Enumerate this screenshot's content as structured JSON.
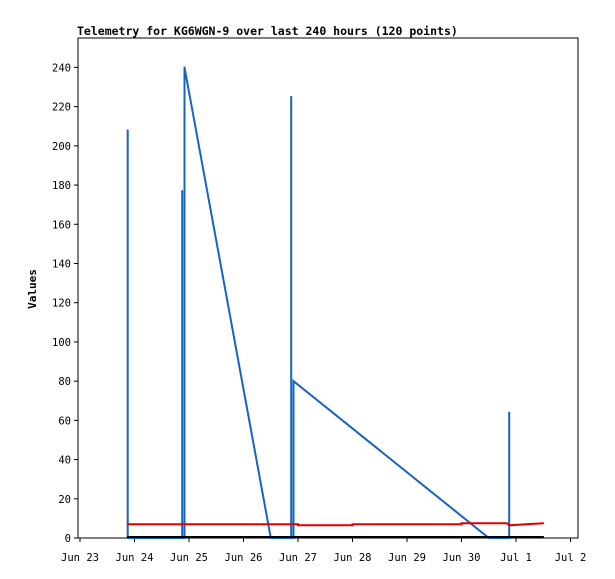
{
  "chart_data": {
    "type": "line",
    "title": "Telemetry for KG6WGN-9 over last 240 hours (120 points)",
    "ylabel": "Values",
    "xlabel": "",
    "x_ticks": [
      "Jun 23",
      "Jun 24",
      "Jun 25",
      "Jun 26",
      "Jun 27",
      "Jun 28",
      "Jun 29",
      "Jun 30",
      "Jul 1",
      "Jul 2"
    ],
    "ylim": [
      0,
      255
    ],
    "y_ticks": [
      0,
      20,
      40,
      60,
      80,
      100,
      120,
      140,
      160,
      180,
      200,
      220,
      240
    ],
    "series": [
      {
        "color": "#1565c0",
        "points": [
          {
            "x": "Jun 23 21:00",
            "y": 0
          },
          {
            "x": "Jun 23 21:00",
            "y": 208
          },
          {
            "x": "Jun 23 21:00",
            "y": 0
          },
          {
            "x": "Jun 24 21:00",
            "y": 0
          },
          {
            "x": "Jun 24 21:00",
            "y": 177
          },
          {
            "x": "Jun 24 21:00",
            "y": 0
          },
          {
            "x": "Jun 24 22:00",
            "y": 0
          },
          {
            "x": "Jun 24 22:00",
            "y": 240
          },
          {
            "x": "Jun 26 12:00",
            "y": 0
          },
          {
            "x": "Jun 26 21:00",
            "y": 0
          },
          {
            "x": "Jun 26 21:00",
            "y": 225
          },
          {
            "x": "Jun 26 21:00",
            "y": 0
          },
          {
            "x": "Jun 26 22:00",
            "y": 0
          },
          {
            "x": "Jun 26 22:00",
            "y": 80
          },
          {
            "x": "Jun 30 12:00",
            "y": 0
          },
          {
            "x": "Jun 30 21:00",
            "y": 0
          },
          {
            "x": "Jun 30 21:00",
            "y": 64
          },
          {
            "x": "Jun 30 21:00",
            "y": 0
          }
        ]
      },
      {
        "color": "#e00000",
        "points": [
          {
            "x": "Jun 23 21:00",
            "y": 7
          },
          {
            "x": "Jun 27 00:00",
            "y": 7
          },
          {
            "x": "Jun 27 00:00",
            "y": 6.5
          },
          {
            "x": "Jun 28 00:00",
            "y": 6.5
          },
          {
            "x": "Jun 28 00:00",
            "y": 7
          },
          {
            "x": "Jun 30 00:00",
            "y": 7
          },
          {
            "x": "Jun 30 00:00",
            "y": 7.5
          },
          {
            "x": "Jun 30 20:00",
            "y": 7.5
          },
          {
            "x": "Jun 30 21:00",
            "y": 6.5
          },
          {
            "x": "Jul 1 12:00",
            "y": 7.5
          }
        ]
      },
      {
        "color": "#000000",
        "points": [
          {
            "x": "Jun 23 21:00",
            "y": 0.5
          },
          {
            "x": "Jul 1 12:00",
            "y": 0.5
          }
        ]
      }
    ]
  }
}
